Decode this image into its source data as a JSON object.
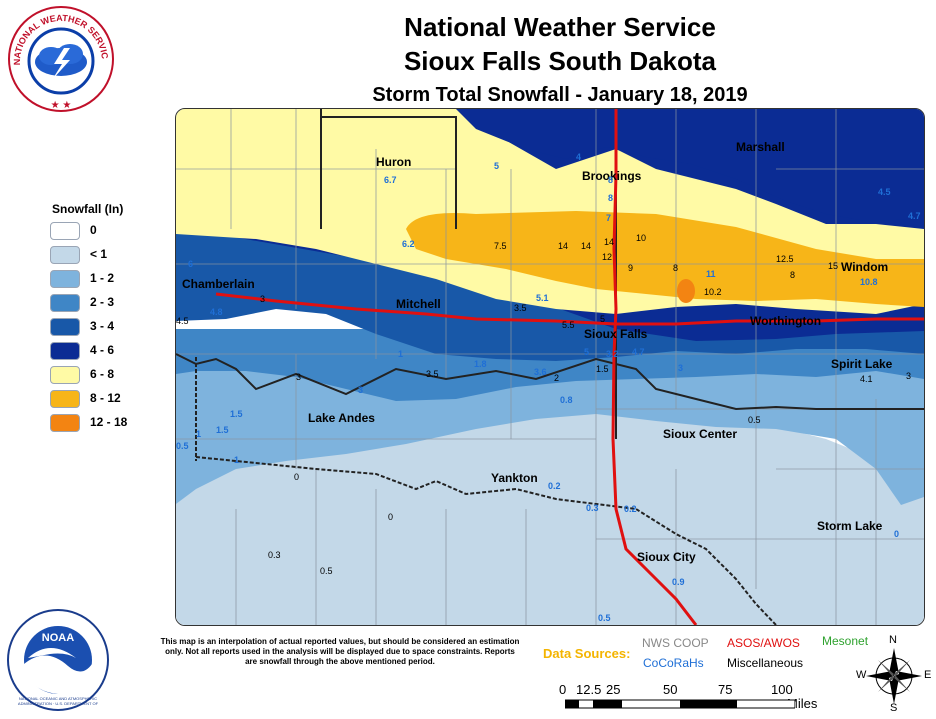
{
  "header": {
    "line1": "National Weather Service",
    "line2": "Sioux Falls South Dakota",
    "line3": "Storm Total Snowfall - January 18, 2019"
  },
  "nws_logo": {
    "text": "NATIONAL WEATHER SERVICE"
  },
  "noaa_logo": {
    "center": "NOAA",
    "ring": "NATIONAL OCEANIC AND ATMOSPHERIC ADMINISTRATION · U.S. DEPARTMENT OF COMMERCE"
  },
  "legend": {
    "title": "Snowfall (In)",
    "items": [
      {
        "label": "0",
        "color": "#ffffff"
      },
      {
        "label": "< 1",
        "color": "#c3d8e8"
      },
      {
        "label": "1 - 2",
        "color": "#7eb3dd"
      },
      {
        "label": "2 - 3",
        "color": "#3f86c6"
      },
      {
        "label": "3 - 4",
        "color": "#1858a8"
      },
      {
        "label": "4 - 6",
        "color": "#0b2c94"
      },
      {
        "label": "6 - 8",
        "color": "#fffaa5"
      },
      {
        "label": "8 - 12",
        "color": "#f7b518"
      },
      {
        "label": "12 - 18",
        "color": "#f38412"
      }
    ]
  },
  "towns": {
    "huron": "Huron",
    "brookings": "Brookings",
    "marshall": "Marshall",
    "chamberlain": "Chamberlain",
    "mitchell": "Mitchell",
    "sioux_falls": "Sioux Falls",
    "worthington": "Worthington",
    "windom": "Windom",
    "spirit_lake": "Spirit Lake",
    "lake_andes": "Lake Andes",
    "sioux_center": "Sioux Center",
    "yankton": "Yankton",
    "storm_lake": "Storm Lake",
    "sioux_city": "Sioux City"
  },
  "values": [
    "6.7",
    "5",
    "4",
    "8",
    "8",
    "7",
    "4.5",
    "4.7",
    "6.2",
    "7.5",
    "14",
    "14",
    "14",
    "12",
    "10",
    "9",
    "8",
    "11",
    "10.2",
    "12.5",
    "8",
    "15",
    "10.8",
    "6",
    "3",
    "4.8",
    "4.5",
    "3.5",
    "5.1",
    "5",
    "5.5",
    "5",
    "3.2",
    "4.7",
    "1",
    "3",
    "3.5",
    "1.8",
    "3.6",
    "2",
    "1.5",
    "3",
    "4.1",
    "3",
    "3",
    "1.5",
    "1.5",
    "1",
    "0.5",
    "1",
    "0.8",
    "0.5",
    "0",
    "0",
    "0.2",
    "0.3",
    "0.2",
    "0.3",
    "0.5",
    "0",
    "0.9",
    "0.5"
  ],
  "disclaimer": "This map is an interpolation of actual reported values, but should be considered an estimation only. Not all reports used in the analysis will be displayed due to space constraints. Reports are snowfall through the above mentioned period.",
  "data_sources": {
    "label": "Data Sources:",
    "nws_coop": "NWS COOP",
    "asos": "ASOS/AWOS",
    "mesonet": "Mesonet",
    "cocorahs": "CoCoRaHs",
    "misc": "Miscellaneous"
  },
  "scale": {
    "ticks": [
      "0",
      "12.5",
      "25",
      "50",
      "75",
      "100"
    ],
    "unit": "Miles"
  },
  "compass": {
    "n": "N",
    "s": "S",
    "e": "E",
    "w": "W"
  }
}
